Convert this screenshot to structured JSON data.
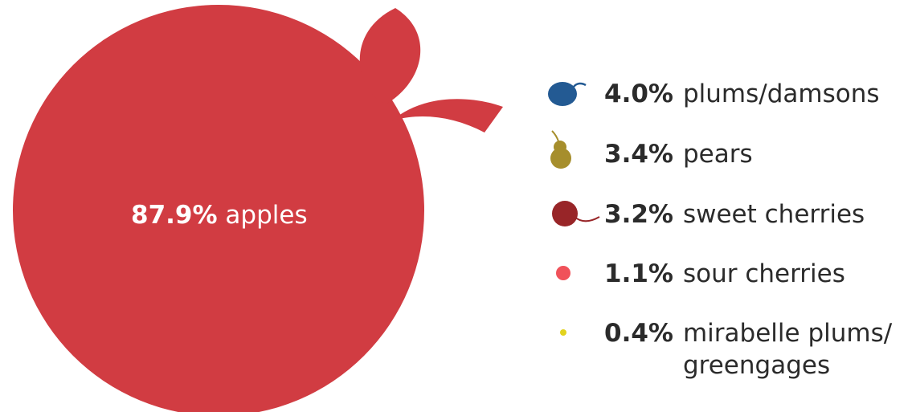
{
  "chart_data": {
    "type": "pie",
    "unit": "%",
    "slices": [
      {
        "label": "apples",
        "value": 87.9,
        "value_text": "87.9%",
        "color": "#d13c42",
        "icon": "apple-icon"
      },
      {
        "label": "plums/damsons",
        "value": 4.0,
        "value_text": "4.0%",
        "color": "#235a93",
        "icon": "plum-icon"
      },
      {
        "label": "pears",
        "value": 3.4,
        "value_text": "3.4%",
        "color": "#a68e2c",
        "icon": "pear-icon"
      },
      {
        "label": "sweet cherries",
        "value": 3.2,
        "value_text": "3.2%",
        "color": "#982528",
        "icon": "sweet-cherry-icon"
      },
      {
        "label": "sour cherries",
        "value": 1.1,
        "value_text": "1.1%",
        "color": "#f0525a",
        "icon": "sour-cherry-icon"
      },
      {
        "label": "mirabelle plums/ greengages",
        "value": 0.4,
        "value_text": "0.4%",
        "color": "#e2d31e",
        "icon": "mirabelle-icon",
        "label_lines": [
          "mirabelle plums/",
          "greengages"
        ]
      }
    ]
  }
}
